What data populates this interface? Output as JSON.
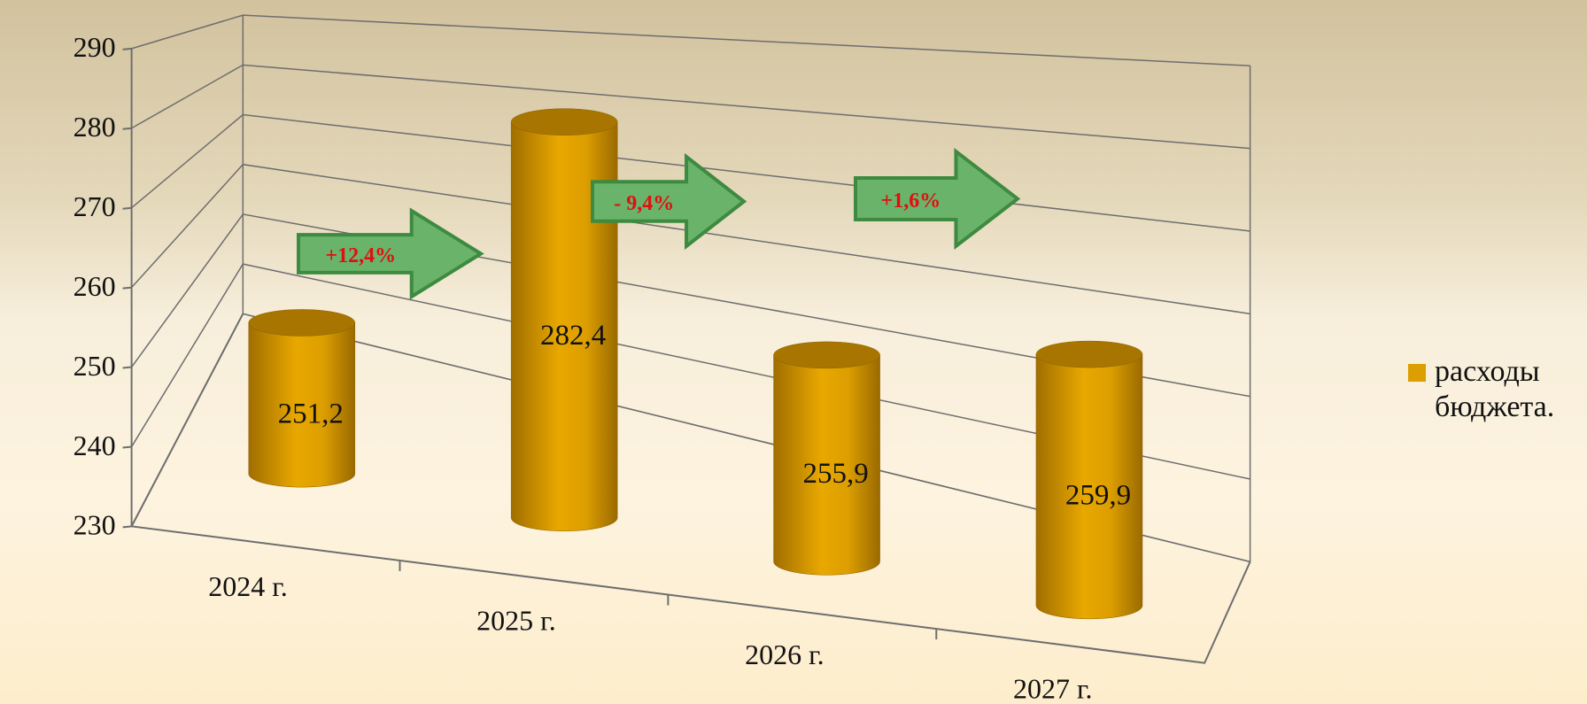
{
  "chart_data": {
    "type": "cylinder-bar",
    "categories": [
      "2024 г.",
      "2025 г.",
      "2026 г.",
      "2027 г."
    ],
    "series": [
      {
        "name": "расходы бюджета.",
        "color": "#dc9e00",
        "values": [
          251.2,
          282.4,
          255.9,
          259.9
        ],
        "value_labels": [
          "251,2",
          "282,4",
          "255,9",
          "259,9"
        ]
      }
    ],
    "ylim": [
      230,
      290
    ],
    "yticks": [
      230,
      240,
      250,
      260,
      270,
      280,
      290
    ],
    "grid": true,
    "annotations": [
      "+12,4%",
      "- 9,4%",
      "+1,6%"
    ],
    "legend": "right"
  }
}
